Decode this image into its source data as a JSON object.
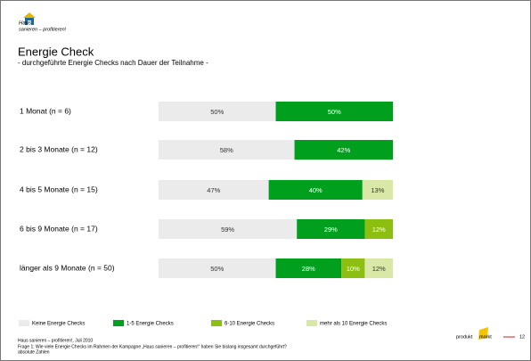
{
  "logo": {
    "line1": "Haus",
    "line2": "sanieren – profitieren!"
  },
  "chart_data": {
    "type": "stacked-bar-horizontal",
    "title": "Energie Check",
    "subtitle": "- durchgeführte Energie Checks nach Dauer der Teilnahme -",
    "categories": [
      "1 Monat (n = 6)",
      "2 bis 3 Monate (n = 12)",
      "4 bis 5 Monate (n = 15)",
      "6 bis 9 Monate (n = 17)",
      "länger als 9 Monate (n = 50)"
    ],
    "xlim": [
      0,
      100
    ],
    "series": [
      {
        "name": "Keine Energie Checks",
        "color": "#ebebeb",
        "text_color": "#333333",
        "values": [
          50,
          58,
          47,
          59,
          50
        ],
        "value_labels": [
          "50%",
          "58%",
          "47%",
          "59%",
          "50%"
        ]
      },
      {
        "name": "1-5 Energie Checks",
        "color": "#00a01e",
        "text_color": "#ffffff",
        "values": [
          50,
          42,
          40,
          29,
          28
        ],
        "value_labels": [
          "50%",
          "42%",
          "40%",
          "29%",
          "28%"
        ]
      },
      {
        "name": "6-10 Energie Checks",
        "color": "#8dbf12",
        "text_color": "#ffffff",
        "values": [
          null,
          null,
          null,
          12,
          10
        ],
        "value_labels": [
          null,
          null,
          null,
          "12%",
          "10%"
        ]
      },
      {
        "name": "mehr als 10 Energie Checks",
        "color": "#d9e8a6",
        "text_color": "#333333",
        "values": [
          null,
          null,
          13,
          null,
          12
        ],
        "value_labels": [
          null,
          null,
          "13%",
          null,
          "12%"
        ]
      }
    ]
  },
  "footer": {
    "source": "Haus sanieren – profitieren!, Juli 2010",
    "question": "Frage 1: Wie viele Energie Checks im Rahmen der Kampagne „Haus sanieren – profitieren!“ haben Sie bislang insgesamt durchgeführt?",
    "note": "absolute Zahlen",
    "brand1": "produkt",
    "brand2": "markt",
    "page": "12"
  }
}
